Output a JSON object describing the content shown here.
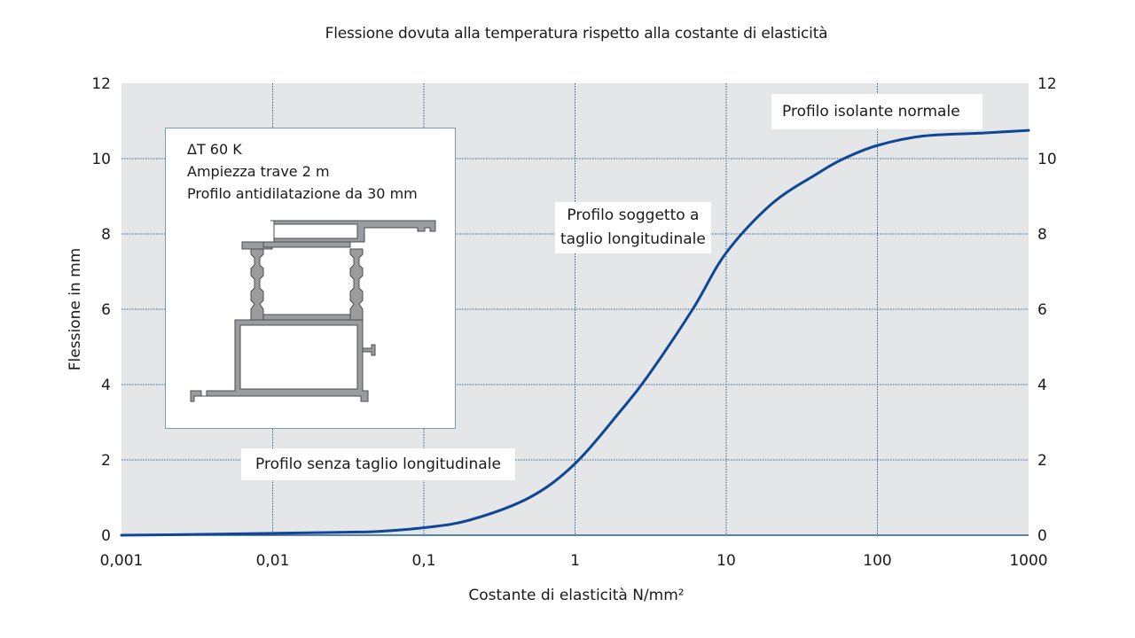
{
  "chart_data": {
    "type": "line",
    "title": "Flessione dovuta alla temperatura rispetto alla costante di elasticità",
    "xlabel": "Costante di elasticità  N/mm²",
    "ylabel": "Flessione in mm",
    "x_scale": "log",
    "xlim": [
      0.001,
      1000
    ],
    "ylim": [
      0,
      12
    ],
    "x_ticks": [
      "0,001",
      "0,01",
      "0,1",
      "1",
      "10",
      "100",
      "1000"
    ],
    "y_ticks": [
      "0",
      "2",
      "4",
      "6",
      "8",
      "10",
      "12"
    ],
    "y_ticks_right": [
      "0",
      "2",
      "4",
      "6",
      "8",
      "10",
      "12"
    ],
    "grid": true,
    "legend": null,
    "series": [
      {
        "name": "Flessione",
        "color": "#0f4697",
        "x": [
          0.001,
          0.003,
          0.01,
          0.03,
          0.05,
          0.1,
          0.2,
          0.5,
          1,
          2,
          3,
          6,
          10,
          20,
          40,
          60,
          100,
          200,
          500,
          1000
        ],
        "y": [
          0.0,
          0.02,
          0.05,
          0.08,
          0.1,
          0.2,
          0.4,
          1.0,
          1.9,
          3.3,
          4.2,
          6.0,
          7.5,
          8.8,
          9.6,
          10.0,
          10.35,
          10.6,
          10.68,
          10.75
        ]
      }
    ],
    "annotations": [
      {
        "text": "Profilo isolante normale",
        "x": 200,
        "y": 11.3
      },
      {
        "text": "Profilo soggetto a taglio longitudinale",
        "x": 3,
        "y": 8.1
      },
      {
        "text": "Profilo senza taglio longitudinale",
        "x": 0.05,
        "y": 1.9
      }
    ]
  },
  "title": "Flessione dovuta alla temperatura rispetto alla costante di elasticità",
  "ylabel": "Flessione in mm",
  "xlabel": "Costante di elasticità  N/mm²",
  "labels": {
    "normal": "Profilo isolante normale",
    "cut_line1": "Profilo soggetto a",
    "cut_line2": "taglio longitudinale",
    "nocut": "Profilo senza taglio longitudinale"
  },
  "inset": {
    "line1": "ΔT 60 K",
    "line2": "Ampiezza trave 2 m",
    "line3": "Profilo antidilatazione da 30 mm"
  },
  "colors": {
    "plot_bg": "#e5e6e8",
    "grid": "#2a5d8f",
    "curve": "#0f4697",
    "profile_fill": "#9a9c9f",
    "profile_stroke": "#4a4c4f"
  }
}
